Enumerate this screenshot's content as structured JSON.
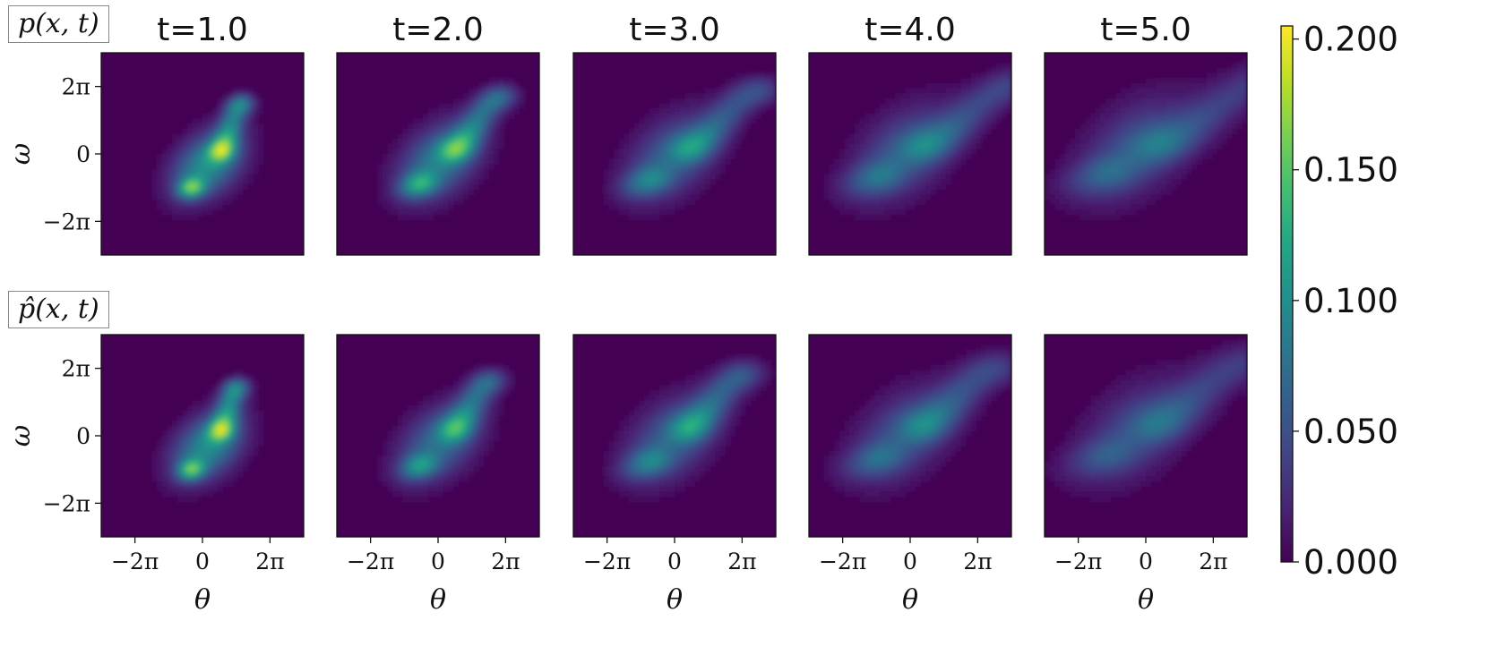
{
  "chart_data": {
    "type": "heatmap",
    "colormap": "viridis",
    "rows": [
      {
        "label": "p(x, t)"
      },
      {
        "label": "p̂(x, t)"
      }
    ],
    "columns": [
      {
        "title": "t=1.0",
        "t": 1.0
      },
      {
        "title": "t=2.0",
        "t": 2.0
      },
      {
        "title": "t=3.0",
        "t": 3.0
      },
      {
        "title": "t=4.0",
        "t": 4.0
      },
      {
        "title": "t=5.0",
        "t": 5.0
      }
    ],
    "xlabel": "θ",
    "ylabel": "ω",
    "xlim": [
      -9.42,
      9.42
    ],
    "ylim": [
      -9.42,
      9.42
    ],
    "x_ticks": [
      {
        "value": -6.283,
        "label": "−2π"
      },
      {
        "value": 0,
        "label": "0"
      },
      {
        "value": 6.283,
        "label": "2π"
      }
    ],
    "y_ticks": [
      {
        "value": 6.283,
        "label": "2π"
      },
      {
        "value": 0,
        "label": "0"
      },
      {
        "value": -6.283,
        "label": "−2π"
      }
    ],
    "colorbar": {
      "min": 0.0,
      "max": 0.205,
      "ticks": [
        {
          "value": 0.0,
          "label": "0.000"
        },
        {
          "value": 0.05,
          "label": "0.050"
        },
        {
          "value": 0.1,
          "label": "0.100"
        },
        {
          "value": 0.15,
          "label": "0.150"
        },
        {
          "value": 0.2,
          "label": "0.200"
        }
      ]
    },
    "approx_peak_density": [
      [
        0.205,
        0.17,
        0.125,
        0.105,
        0.09
      ],
      [
        0.2,
        0.155,
        0.13,
        0.105,
        0.085
      ]
    ]
  }
}
